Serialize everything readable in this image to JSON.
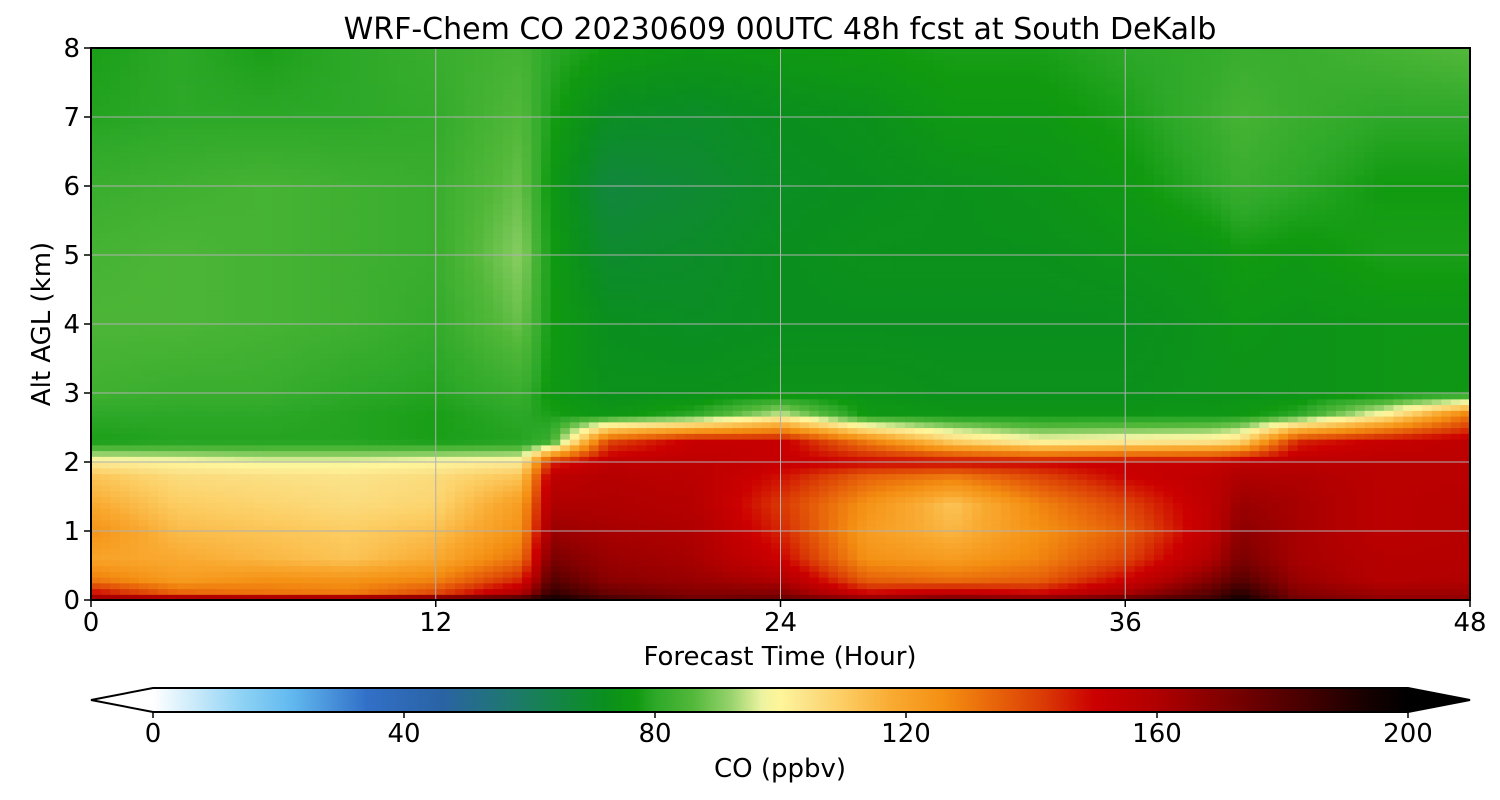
{
  "chart_data": {
    "type": "heatmap",
    "title": "WRF-Chem CO  20230609 00UTC 48h fcst at South DeKalb",
    "xlabel": "Forecast Time (Hour)",
    "ylabel": "Alt AGL (km)",
    "xlim": [
      0,
      48
    ],
    "ylim": [
      0,
      8
    ],
    "x_ticks": [
      "0",
      "12",
      "24",
      "36",
      "48"
    ],
    "y_ticks": [
      "0",
      "1",
      "2",
      "3",
      "4",
      "5",
      "6",
      "7",
      "8"
    ],
    "grid": true,
    "x_hours": [
      0,
      3,
      6,
      9,
      12,
      15,
      16,
      18,
      21,
      24,
      27,
      30,
      33,
      36,
      39,
      40,
      42,
      45,
      48
    ],
    "y_km": [
      0,
      0.1,
      0.3,
      0.6,
      1.0,
      1.4,
      1.8,
      2.0,
      2.3,
      2.7,
      3.0,
      4.0,
      5.0,
      6.0,
      7.0,
      8.0
    ],
    "co_ppbv": [
      [
        170,
        176,
        180,
        182,
        185,
        190,
        196,
        186,
        175,
        178,
        172,
        178,
        176,
        180,
        186,
        196,
        174,
        168,
        168
      ],
      [
        150,
        135,
        132,
        130,
        140,
        160,
        188,
        176,
        170,
        170,
        150,
        155,
        150,
        162,
        180,
        190,
        170,
        164,
        164
      ],
      [
        130,
        122,
        125,
        124,
        128,
        145,
        180,
        168,
        165,
        160,
        135,
        132,
        135,
        150,
        170,
        180,
        165,
        158,
        160
      ],
      [
        120,
        118,
        115,
        112,
        118,
        132,
        172,
        165,
        162,
        150,
        125,
        122,
        128,
        140,
        160,
        172,
        162,
        158,
        158
      ],
      [
        125,
        114,
        112,
        110,
        113,
        125,
        165,
        162,
        160,
        145,
        122,
        115,
        125,
        135,
        155,
        168,
        162,
        156,
        158
      ],
      [
        118,
        110,
        108,
        106,
        108,
        122,
        160,
        160,
        158,
        142,
        125,
        112,
        128,
        140,
        155,
        165,
        162,
        156,
        158
      ],
      [
        112,
        106,
        105,
        104,
        106,
        112,
        155,
        158,
        156,
        148,
        135,
        130,
        140,
        150,
        155,
        160,
        160,
        156,
        156
      ],
      [
        102,
        100,
        98,
        98,
        100,
        102,
        145,
        155,
        155,
        152,
        150,
        150,
        150,
        152,
        152,
        155,
        156,
        156,
        156
      ],
      [
        78,
        79,
        79,
        79,
        78,
        79,
        82,
        140,
        152,
        152,
        130,
        110,
        100,
        102,
        104,
        108,
        145,
        152,
        155
      ],
      [
        80,
        80,
        80,
        79,
        78,
        80,
        78,
        75,
        80,
        95,
        76,
        75,
        75,
        75,
        75,
        76,
        80,
        100,
        130
      ],
      [
        83,
        82,
        82,
        80,
        79,
        82,
        76,
        73,
        73,
        74,
        74,
        73,
        73,
        73,
        74,
        74,
        74,
        75,
        76
      ],
      [
        85,
        85,
        84,
        83,
        81,
        88,
        77,
        72,
        71,
        72,
        72,
        72,
        72,
        72,
        74,
        75,
        74,
        75,
        75
      ],
      [
        84,
        85,
        84,
        83,
        82,
        91,
        77,
        69,
        70,
        72,
        73,
        73,
        73,
        74,
        75,
        77,
        76,
        78,
        78
      ],
      [
        82,
        83,
        84,
        83,
        82,
        88,
        76,
        66,
        68,
        71,
        72,
        73,
        74,
        76,
        80,
        82,
        80,
        77,
        77
      ],
      [
        79,
        80,
        80,
        80,
        81,
        86,
        78,
        71,
        70,
        72,
        73,
        76,
        76,
        78,
        82,
        84,
        82,
        80,
        80
      ],
      [
        78,
        80,
        78,
        80,
        82,
        84,
        80,
        77,
        75,
        76,
        77,
        78,
        78,
        80,
        81,
        82,
        82,
        84,
        86
      ]
    ],
    "colorbar": {
      "label": "CO  (ppbv)",
      "min": 0,
      "max": 200,
      "tick_values": [
        0,
        40,
        80,
        120,
        160,
        200
      ],
      "tick_labels": [
        "0",
        "40",
        "80",
        "120",
        "160",
        "200"
      ],
      "extend": "both",
      "color_stops": [
        [
          0,
          "#ffffff"
        ],
        [
          14,
          "#8fd3f5"
        ],
        [
          22,
          "#62b9ef"
        ],
        [
          34,
          "#3270c8"
        ],
        [
          46,
          "#2a63a4"
        ],
        [
          60,
          "#1a7e5e"
        ],
        [
          72,
          "#0a8f1e"
        ],
        [
          77,
          "#109a10"
        ],
        [
          80,
          "#2da828"
        ],
        [
          86,
          "#52b83a"
        ],
        [
          92,
          "#96d26c"
        ],
        [
          97,
          "#ecf3a0"
        ],
        [
          100,
          "#fff59a"
        ],
        [
          104,
          "#fbe38a"
        ],
        [
          110,
          "#fccd62"
        ],
        [
          118,
          "#f9a930"
        ],
        [
          126,
          "#f48f12"
        ],
        [
          134,
          "#e8650a"
        ],
        [
          142,
          "#da3a05"
        ],
        [
          150,
          "#cc0000"
        ],
        [
          160,
          "#b00000"
        ],
        [
          172,
          "#7a0000"
        ],
        [
          184,
          "#440000"
        ],
        [
          194,
          "#140000"
        ],
        [
          200,
          "#000000"
        ]
      ]
    }
  }
}
